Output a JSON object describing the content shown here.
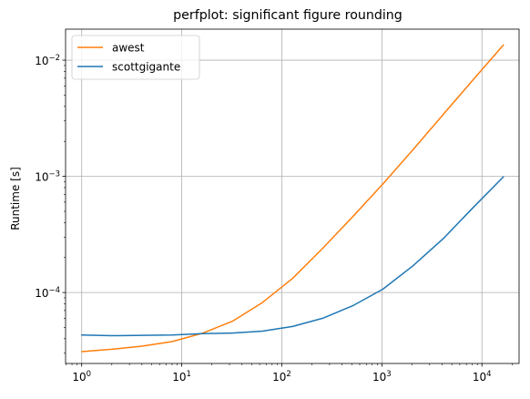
{
  "chart_data": {
    "type": "line",
    "title": "perfplot: significant figure rounding",
    "xlabel": "",
    "ylabel": "Runtime [s]",
    "xscale": "log",
    "yscale": "log",
    "xlim": [
      0.69,
      23500
    ],
    "ylim": [
      2.45e-05,
      0.0185
    ],
    "grid": true,
    "legend": "top-left",
    "x": [
      1,
      2,
      4,
      8,
      16,
      32,
      64,
      128,
      256,
      512,
      1024,
      2048,
      4096,
      8192,
      16384
    ],
    "series": [
      {
        "name": "awest",
        "color": "#ff7f0e",
        "values": [
          3.1e-05,
          3.25e-05,
          3.45e-05,
          3.78e-05,
          4.45e-05,
          5.65e-05,
          8.2e-05,
          0.000132,
          0.00024,
          0.00045,
          0.00086,
          0.0017,
          0.0034,
          0.0068,
          0.0135
        ]
      },
      {
        "name": "scottgigante",
        "color": "#1f77b4",
        "values": [
          4.3e-05,
          4.25e-05,
          4.28e-05,
          4.3e-05,
          4.43e-05,
          4.48e-05,
          4.65e-05,
          5.1e-05,
          6e-05,
          7.7e-05,
          0.000107,
          0.00017,
          0.00029,
          0.00054,
          0.00099
        ]
      }
    ],
    "xticks": [
      {
        "base": "10",
        "exp": "0",
        "value": 1
      },
      {
        "base": "10",
        "exp": "1",
        "value": 10
      },
      {
        "base": "10",
        "exp": "2",
        "value": 100
      },
      {
        "base": "10",
        "exp": "3",
        "value": 1000
      },
      {
        "base": "10",
        "exp": "4",
        "value": 10000
      }
    ],
    "yticks": [
      {
        "base": "10",
        "exp": "−4",
        "value": 0.0001
      },
      {
        "base": "10",
        "exp": "−3",
        "value": 0.001
      },
      {
        "base": "10",
        "exp": "−2",
        "value": 0.01
      }
    ]
  }
}
